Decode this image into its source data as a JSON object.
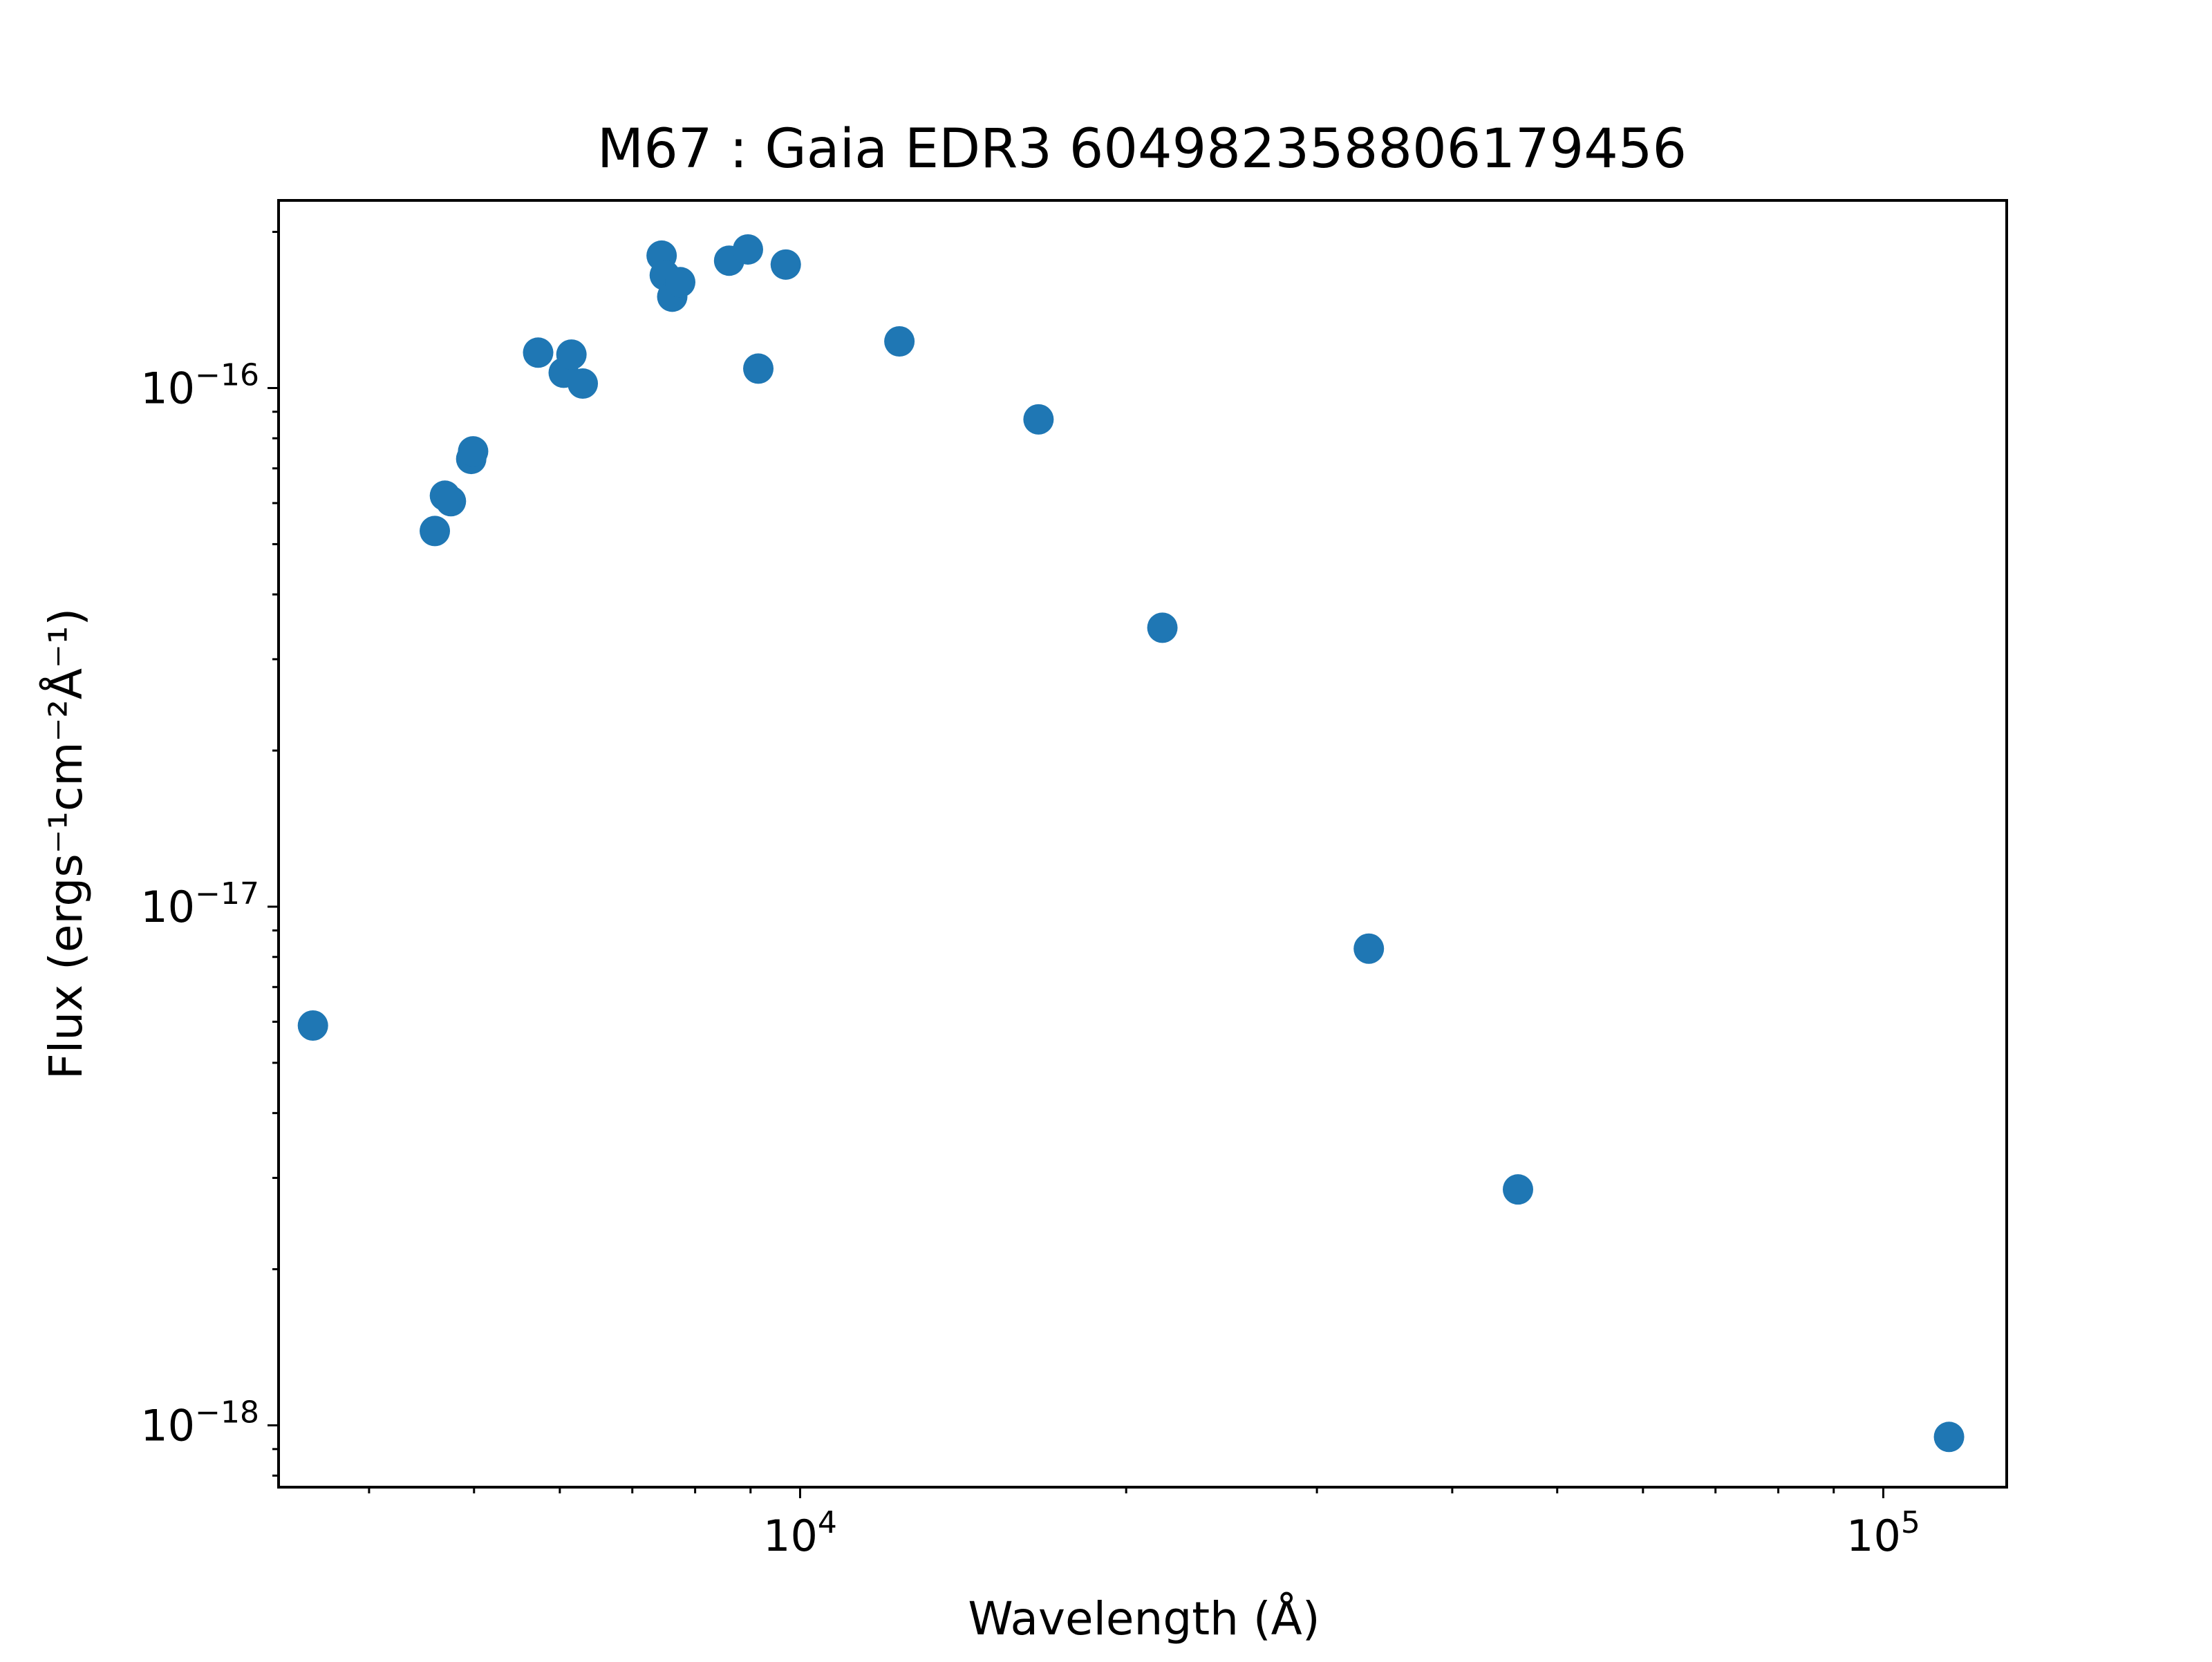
{
  "chart_data": {
    "type": "scatter",
    "title": "M67 : Gaia EDR3 604982358806179456",
    "xlabel": "Wavelength (Å)",
    "ylabel": "Flux (ergs⁻¹cm⁻²Å⁻¹)",
    "xscale": "log",
    "yscale": "log",
    "xlim": [
      3300,
      130000
    ],
    "ylim": [
      7.6e-19,
      2.3e-16
    ],
    "grid": false,
    "legend": "none",
    "marker_color": "#1f77b4",
    "x_ticks": [
      {
        "value": 10000,
        "base": "10",
        "exp": "4"
      },
      {
        "value": 100000,
        "base": "10",
        "exp": "5"
      }
    ],
    "y_ticks": [
      {
        "value": 1e-16,
        "base": "10",
        "exp": "−16"
      },
      {
        "value": 1e-17,
        "base": "10",
        "exp": "−17"
      },
      {
        "value": 1e-18,
        "base": "10",
        "exp": "−18"
      }
    ],
    "points": [
      {
        "x": 3550,
        "y": 5.9e-18
      },
      {
        "x": 4600,
        "y": 5.3e-17
      },
      {
        "x": 4700,
        "y": 6.2e-17
      },
      {
        "x": 4760,
        "y": 6.05e-17
      },
      {
        "x": 4970,
        "y": 7.3e-17
      },
      {
        "x": 4990,
        "y": 7.55e-17
      },
      {
        "x": 5730,
        "y": 1.17e-16
      },
      {
        "x": 6050,
        "y": 1.07e-16
      },
      {
        "x": 6150,
        "y": 1.16e-16
      },
      {
        "x": 6300,
        "y": 1.02e-16
      },
      {
        "x": 7450,
        "y": 1.8e-16
      },
      {
        "x": 7500,
        "y": 1.65e-16
      },
      {
        "x": 7620,
        "y": 1.5e-16
      },
      {
        "x": 7750,
        "y": 1.6e-16
      },
      {
        "x": 8600,
        "y": 1.76e-16
      },
      {
        "x": 8950,
        "y": 1.85e-16
      },
      {
        "x": 9150,
        "y": 1.09e-16
      },
      {
        "x": 9700,
        "y": 1.73e-16
      },
      {
        "x": 12350,
        "y": 1.23e-16
      },
      {
        "x": 16600,
        "y": 8.7e-17
      },
      {
        "x": 21600,
        "y": 3.45e-17
      },
      {
        "x": 33500,
        "y": 8.3e-18
      },
      {
        "x": 46000,
        "y": 2.85e-18
      },
      {
        "x": 115000,
        "y": 9.5e-19
      }
    ]
  }
}
